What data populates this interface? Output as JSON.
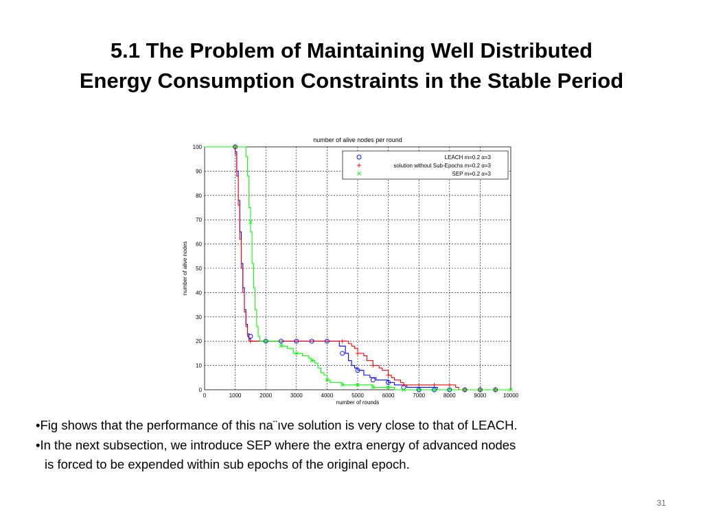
{
  "slide": {
    "title_line1": "5.1 The Problem of Maintaining Well Distributed",
    "title_line2": "Energy Consumption Constraints in the Stable Period",
    "bullets": [
      {
        "marker": "•",
        "text": "Fig  shows that the performance of this na¨ıve solution is very close to that of LEACH."
      },
      {
        "marker": "•",
        "text": "In the next subsection, we introduce SEP where the extra energy of  advanced nodes",
        "continuation": "is forced to be expended  within sub epochs of the original epoch."
      }
    ],
    "page_number": "31"
  },
  "colors": {
    "leach": "#0000ff",
    "no_subepochs": "#ff0000",
    "sep": "#00ff00",
    "grid": "#000000"
  },
  "chart_data": {
    "type": "line",
    "title": "number of alive nodes per round",
    "xlabel": "number of rounds",
    "ylabel": "number of alive nodes",
    "xlim": [
      0,
      10000
    ],
    "ylim": [
      0,
      100
    ],
    "xticks": [
      0,
      1000,
      2000,
      3000,
      4000,
      5000,
      6000,
      7000,
      8000,
      9000,
      10000
    ],
    "yticks": [
      0,
      10,
      20,
      30,
      40,
      50,
      60,
      70,
      80,
      90,
      100
    ],
    "grid": true,
    "legend_position": "top-right",
    "series": [
      {
        "name": "LEACH  m=0.2 α=3",
        "marker": "o",
        "color_key": "leach",
        "points": [
          [
            0,
            100
          ],
          [
            950,
            100
          ],
          [
            1000,
            98
          ],
          [
            1050,
            90
          ],
          [
            1100,
            78
          ],
          [
            1150,
            65
          ],
          [
            1200,
            52
          ],
          [
            1250,
            42
          ],
          [
            1300,
            33
          ],
          [
            1350,
            27
          ],
          [
            1400,
            23
          ],
          [
            1450,
            21
          ],
          [
            1500,
            20
          ],
          [
            2000,
            20
          ],
          [
            3000,
            20
          ],
          [
            4000,
            20
          ],
          [
            4400,
            18
          ],
          [
            4600,
            15
          ],
          [
            4700,
            12
          ],
          [
            4800,
            10
          ],
          [
            4900,
            9
          ],
          [
            5000,
            8
          ],
          [
            5200,
            6
          ],
          [
            5400,
            5
          ],
          [
            5600,
            4
          ],
          [
            5800,
            4
          ],
          [
            6000,
            3
          ],
          [
            6200,
            2
          ],
          [
            6600,
            1
          ],
          [
            7000,
            1
          ],
          [
            7600,
            0
          ],
          [
            10000,
            0
          ]
        ],
        "markers": [
          [
            1000,
            100
          ],
          [
            1500,
            22
          ],
          [
            2000,
            20
          ],
          [
            2500,
            20
          ],
          [
            3000,
            20
          ],
          [
            3500,
            20
          ],
          [
            4000,
            20
          ],
          [
            4500,
            15
          ],
          [
            5000,
            8
          ],
          [
            5500,
            4
          ],
          [
            6000,
            3
          ],
          [
            6500,
            1
          ],
          [
            7000,
            0
          ],
          [
            7500,
            0
          ],
          [
            8000,
            0
          ],
          [
            8500,
            0
          ],
          [
            9000,
            0
          ],
          [
            9500,
            0
          ]
        ]
      },
      {
        "name": "solution without Sub-Epochs  m=0.2 α=3",
        "marker": "+",
        "color_key": "no_subepochs",
        "points": [
          [
            0,
            100
          ],
          [
            950,
            100
          ],
          [
            1000,
            97
          ],
          [
            1050,
            88
          ],
          [
            1100,
            76
          ],
          [
            1150,
            62
          ],
          [
            1200,
            50
          ],
          [
            1250,
            40
          ],
          [
            1300,
            32
          ],
          [
            1350,
            26
          ],
          [
            1400,
            22
          ],
          [
            1450,
            20
          ],
          [
            1500,
            20
          ],
          [
            2000,
            20
          ],
          [
            3000,
            20
          ],
          [
            4000,
            20
          ],
          [
            4200,
            20
          ],
          [
            4500,
            20
          ],
          [
            4700,
            19
          ],
          [
            4800,
            18
          ],
          [
            4900,
            17
          ],
          [
            5000,
            15
          ],
          [
            5200,
            14
          ],
          [
            5300,
            12
          ],
          [
            5500,
            10
          ],
          [
            5700,
            9
          ],
          [
            5800,
            8
          ],
          [
            6000,
            6
          ],
          [
            6100,
            5
          ],
          [
            6200,
            4
          ],
          [
            6400,
            3
          ],
          [
            6500,
            2
          ],
          [
            7000,
            2
          ],
          [
            8000,
            2
          ],
          [
            8200,
            1
          ],
          [
            8300,
            0
          ],
          [
            10000,
            0
          ]
        ],
        "markers": [
          [
            1000,
            100
          ],
          [
            1500,
            20
          ],
          [
            4500,
            20
          ],
          [
            5000,
            15
          ],
          [
            5500,
            10
          ],
          [
            6000,
            6
          ],
          [
            6500,
            2
          ],
          [
            7000,
            2
          ],
          [
            7500,
            2
          ],
          [
            8000,
            2
          ],
          [
            8500,
            0
          ],
          [
            9000,
            0
          ],
          [
            9500,
            0
          ]
        ]
      },
      {
        "name": "SEP  m=0.2 α=3",
        "marker": "x",
        "color_key": "sep",
        "points": [
          [
            0,
            100
          ],
          [
            1300,
            100
          ],
          [
            1350,
            96
          ],
          [
            1400,
            88
          ],
          [
            1450,
            75
          ],
          [
            1500,
            65
          ],
          [
            1550,
            52
          ],
          [
            1600,
            42
          ],
          [
            1650,
            33
          ],
          [
            1700,
            26
          ],
          [
            1750,
            22
          ],
          [
            1800,
            20
          ],
          [
            2000,
            20
          ],
          [
            2300,
            20
          ],
          [
            2500,
            18
          ],
          [
            2700,
            17
          ],
          [
            2900,
            15
          ],
          [
            3200,
            14
          ],
          [
            3400,
            13
          ],
          [
            3500,
            12
          ],
          [
            3600,
            11
          ],
          [
            3700,
            9
          ],
          [
            3800,
            7
          ],
          [
            3900,
            6
          ],
          [
            4000,
            4
          ],
          [
            4100,
            3
          ],
          [
            4300,
            3
          ],
          [
            4500,
            2
          ],
          [
            5000,
            2
          ],
          [
            5500,
            1
          ],
          [
            6000,
            1
          ],
          [
            6200,
            0
          ],
          [
            10000,
            0
          ]
        ],
        "markers": [
          [
            1000,
            100
          ],
          [
            1500,
            69
          ],
          [
            2000,
            20
          ],
          [
            2500,
            18
          ],
          [
            3000,
            15
          ],
          [
            3500,
            12
          ],
          [
            4000,
            4
          ],
          [
            4500,
            2
          ],
          [
            5000,
            2
          ],
          [
            5500,
            1
          ],
          [
            6000,
            1
          ],
          [
            6500,
            0
          ],
          [
            7000,
            0
          ],
          [
            7500,
            0
          ],
          [
            8000,
            0
          ],
          [
            8500,
            0
          ],
          [
            9000,
            0
          ],
          [
            9500,
            0
          ],
          [
            10000,
            0
          ]
        ]
      }
    ]
  }
}
